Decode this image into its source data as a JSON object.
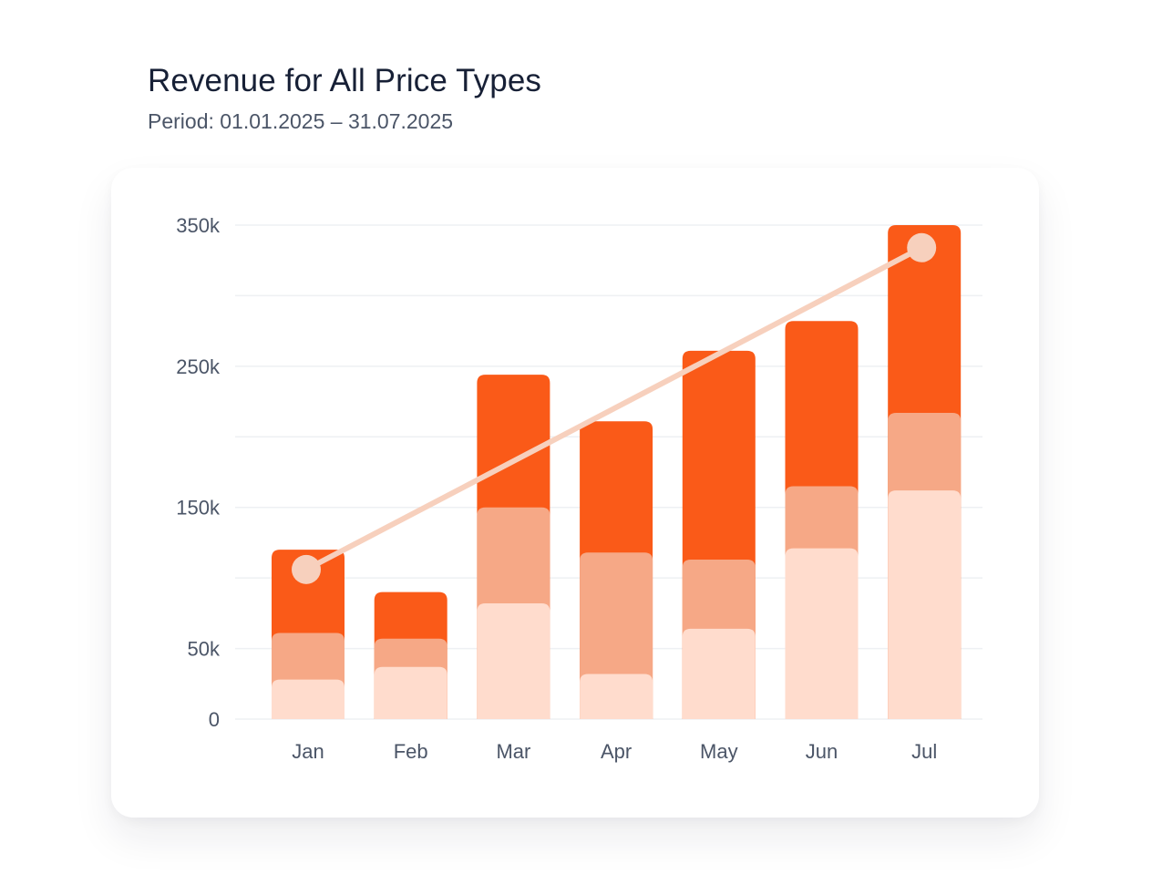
{
  "chart_data": {
    "type": "bar",
    "stacked": true,
    "title": "Revenue for All Price Types",
    "subtitle": "Period: 01.01.2025 – 31.07.2025",
    "categories": [
      "Jan",
      "Feb",
      "Mar",
      "Apr",
      "May",
      "Jun",
      "Jul"
    ],
    "series": [
      {
        "color": "#ffdccd",
        "values": [
          28000,
          37000,
          82000,
          32000,
          64000,
          121000,
          162000
        ]
      },
      {
        "color": "#f6a886",
        "values": [
          33000,
          20000,
          68000,
          86000,
          49000,
          44000,
          55000
        ]
      },
      {
        "color": "#fa5a18",
        "values": [
          59000,
          33000,
          94000,
          93000,
          148000,
          117000,
          133000
        ]
      }
    ],
    "line": {
      "color": "#f7d0bd",
      "from": {
        "category": "Jan",
        "value": 106000
      },
      "to": {
        "category": "Jul",
        "value": 334000
      }
    },
    "yticks": [
      {
        "value": 350000,
        "label": "350k"
      },
      {
        "value": 250000,
        "label": "250k"
      },
      {
        "value": 150000,
        "label": "150k"
      },
      {
        "value": 50000,
        "label": "50k"
      },
      {
        "value": 0,
        "label": "0"
      }
    ],
    "gridlines": [
      0,
      50000,
      100000,
      150000,
      200000,
      250000,
      300000,
      350000
    ],
    "ylim": [
      0,
      350000
    ],
    "xlabel": "",
    "ylabel": "",
    "grid": true,
    "legend": "none"
  }
}
